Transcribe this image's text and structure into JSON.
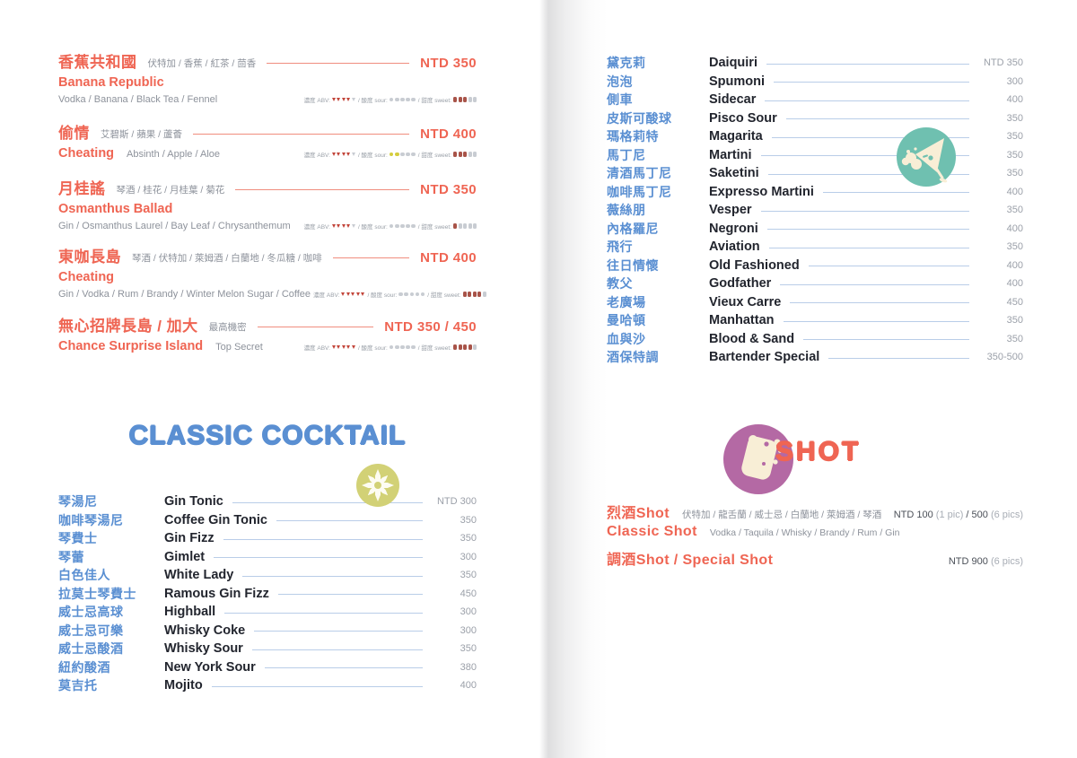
{
  "colors": {
    "coral": "#ef6553",
    "blue": "#5a8fd2",
    "dark_text": "#22252e",
    "ingredient_grey": "#8d929b",
    "price_grey": "#9ba0a9",
    "coral_rule": "#f08d7e",
    "blue_rule": "#b9cde8",
    "badge_olive": "#d2d176",
    "badge_teal": "#6fc0b0",
    "badge_purple": "#b469a4",
    "badge_cream": "#f8eed6",
    "abv_filled": "#c2453a",
    "sour_filled": "#d4cc3e",
    "sweet_filled": "#a85348",
    "rating_empty": "#c8ccd2"
  },
  "rating_labels": {
    "abv": "濃度 ABV:",
    "sour": "/ 酸度 sour:",
    "sweet": "/ 甜度 sweet:"
  },
  "left": {
    "signature_items": [
      {
        "zh": "香蕉共和國",
        "zh_ing": "伏特加 / 香蕉 / 紅茶 / 茴香",
        "en": "Banana Republic",
        "en_sub": "",
        "en_ing": "Vodka / Banana / Black Tea / Fennel",
        "price": "NTD 350",
        "abv": 4,
        "sour": 0,
        "sweet": 3,
        "compact": false
      },
      {
        "zh": "偷情",
        "zh_ing": "艾碧斯 / 蘋果 / 蘆薈",
        "en": "Cheating",
        "en_sub": "Absinth / Apple / Aloe",
        "en_ing": "",
        "price": "NTD 400",
        "abv": 4,
        "sour": 2,
        "sweet": 3,
        "compact": true
      },
      {
        "zh": "月桂謠",
        "zh_ing": "琴酒 / 桂花 / 月桂葉 / 菊花",
        "en": "Osmanthus Ballad",
        "en_sub": "",
        "en_ing": "Gin / Osmanthus Laurel / Bay Leaf / Chrysanthemum",
        "price": "NTD 350",
        "abv": 4,
        "sour": 0,
        "sweet": 1,
        "compact": false
      },
      {
        "zh": "東咖長島",
        "zh_ing": "琴酒 / 伏特加 / 萊姆酒 / 白蘭地 / 冬瓜糖 / 咖啡",
        "en": "Cheating",
        "en_sub": "",
        "en_ing": "Gin / Vodka / Rum / Brandy / Winter Melon Sugar / Coffee",
        "price": "NTD 400",
        "abv": 5,
        "sour": 0,
        "sweet": 4,
        "compact": false
      },
      {
        "zh": "無心招牌長島 / 加大",
        "zh_ing": "最高機密",
        "en": "Chance Surprise Island",
        "en_sub": "Top Secret",
        "en_ing": "",
        "price": "NTD 350 / 450",
        "abv": 5,
        "sour": 0,
        "sweet": 4,
        "compact": true
      }
    ],
    "classic_heading": "CLASSIC COCKTAIL",
    "classic_items": [
      {
        "zh": "琴湯尼",
        "en": "Gin Tonic",
        "price": "NTD 300"
      },
      {
        "zh": "咖啡琴湯尼",
        "en": "Coffee Gin Tonic",
        "price": "350"
      },
      {
        "zh": "琴費士",
        "en": "Gin Fizz",
        "price": "350"
      },
      {
        "zh": "琴蕾",
        "en": "Gimlet",
        "price": "300"
      },
      {
        "zh": "白色佳人",
        "en": "White Lady",
        "price": "350"
      },
      {
        "zh": "拉莫士琴費士",
        "en": "Ramous Gin Fizz",
        "price": "450"
      },
      {
        "zh": "威士忌高球",
        "en": "Highball",
        "price": "300"
      },
      {
        "zh": "威士忌可樂",
        "en": "Whisky Coke",
        "price": "300"
      },
      {
        "zh": "威士忌酸酒",
        "en": "Whisky Sour",
        "price": "350"
      },
      {
        "zh": "紐約酸酒",
        "en": "New York Sour",
        "price": "380"
      },
      {
        "zh": "莫吉托",
        "en": "Mojito",
        "price": "400"
      }
    ]
  },
  "right": {
    "classic_items": [
      {
        "zh": "黛克莉",
        "en": "Daiquiri",
        "price": "NTD 350"
      },
      {
        "zh": "泡泡",
        "en": "Spumoni",
        "price": "300"
      },
      {
        "zh": "側車",
        "en": "Sidecar",
        "price": "400"
      },
      {
        "zh": "皮斯可酸球",
        "en": "Pisco Sour",
        "price": "350"
      },
      {
        "zh": "瑪格莉特",
        "en": "Magarita",
        "price": "350"
      },
      {
        "zh": "馬丁尼",
        "en": "Martini",
        "price": "350"
      },
      {
        "zh": "清酒馬丁尼",
        "en": "Saketini",
        "price": "350"
      },
      {
        "zh": "咖啡馬丁尼",
        "en": "Expresso Martini",
        "price": "400"
      },
      {
        "zh": "薇絲朋",
        "en": "Vesper",
        "price": "350"
      },
      {
        "zh": "內格羅尼",
        "en": "Negroni",
        "price": "400"
      },
      {
        "zh": "飛行",
        "en": "Aviation",
        "price": "350"
      },
      {
        "zh": "往日情懷",
        "en": "Old Fashioned",
        "price": "400"
      },
      {
        "zh": "教父",
        "en": "Godfather",
        "price": "400"
      },
      {
        "zh": "老廣場",
        "en": "Vieux Carre",
        "price": "450"
      },
      {
        "zh": "曼哈頓",
        "en": "Manhattan",
        "price": "350"
      },
      {
        "zh": "血與沙",
        "en": "Blood & Sand",
        "price": "350"
      },
      {
        "zh": "酒保特調",
        "en": "Bartender Special",
        "price": "350-500"
      }
    ],
    "shot_heading": "SHOT",
    "shot_items": [
      {
        "name": "烈酒Shot",
        "ing": "伏特加 / 龍舌蘭 / 威士忌 / 白蘭地 / 萊姆酒 / 琴酒",
        "price": [
          {
            "t": "NTD 100 ",
            "m": false
          },
          {
            "t": "(1 pic)",
            "m": true
          },
          {
            "t": " / 500 ",
            "m": false
          },
          {
            "t": "(6 pics)",
            "m": true
          }
        ]
      },
      {
        "name": "Classic Shot",
        "ing": "Vodka / Taquila / Whisky / Brandy / Rum / Gin",
        "price": []
      },
      {
        "name": "調酒Shot / Special Shot",
        "ing": "",
        "price": [
          {
            "t": "NTD 900 ",
            "m": false
          },
          {
            "t": "(6 pics)",
            "m": true
          }
        ]
      }
    ]
  }
}
